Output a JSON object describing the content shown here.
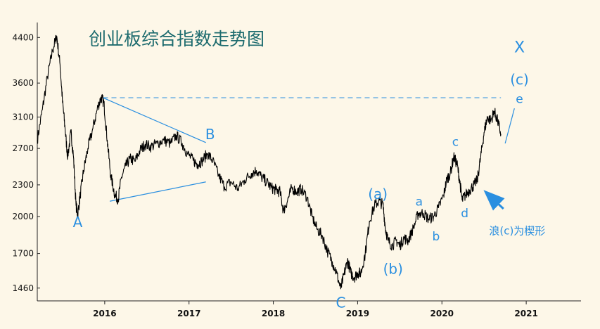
{
  "chart_data": {
    "type": "line",
    "title": "创业板综合指数走势图",
    "xlabel": "",
    "ylabel": "",
    "y_scale": "log",
    "ylim": [
      1380,
      4700
    ],
    "xlim": [
      2015.2,
      2021.65
    ],
    "y_ticks": [
      {
        "value": 4400,
        "label": "4400"
      },
      {
        "value": 3600,
        "label": "3600"
      },
      {
        "value": 3100,
        "label": "3100"
      },
      {
        "value": 2700,
        "label": "2700"
      },
      {
        "value": 2300,
        "label": "2300"
      },
      {
        "value": 2000,
        "label": "2000"
      },
      {
        "value": 1700,
        "label": "1700"
      },
      {
        "value": 1460,
        "label": "1460"
      }
    ],
    "x_ticks": [
      {
        "value": 2016,
        "label": "2016"
      },
      {
        "value": 2017,
        "label": "2017"
      },
      {
        "value": 2018,
        "label": "2018"
      },
      {
        "value": 2019,
        "label": "2019"
      },
      {
        "value": 2020,
        "label": "2020"
      },
      {
        "value": 2021,
        "label": "2021"
      }
    ],
    "series": [
      {
        "color": "#000000",
        "points": [
          [
            2015.2,
            2800
          ],
          [
            2015.26,
            3200
          ],
          [
            2015.32,
            3700
          ],
          [
            2015.38,
            4150
          ],
          [
            2015.43,
            4430
          ],
          [
            2015.47,
            3900
          ],
          [
            2015.5,
            3300
          ],
          [
            2015.53,
            2950
          ],
          [
            2015.56,
            2600
          ],
          [
            2015.6,
            2900
          ],
          [
            2015.63,
            2600
          ],
          [
            2015.66,
            2100
          ],
          [
            2015.68,
            2020
          ],
          [
            2015.71,
            2200
          ],
          [
            2015.75,
            2450
          ],
          [
            2015.8,
            2700
          ],
          [
            2015.86,
            2950
          ],
          [
            2015.92,
            3250
          ],
          [
            2015.96,
            3380
          ],
          [
            2015.99,
            3300
          ],
          [
            2016.03,
            2800
          ],
          [
            2016.07,
            2400
          ],
          [
            2016.12,
            2200
          ],
          [
            2016.16,
            2160
          ],
          [
            2016.2,
            2380
          ],
          [
            2016.25,
            2500
          ],
          [
            2016.3,
            2580
          ],
          [
            2016.36,
            2550
          ],
          [
            2016.42,
            2680
          ],
          [
            2016.48,
            2750
          ],
          [
            2016.55,
            2720
          ],
          [
            2016.62,
            2760
          ],
          [
            2016.7,
            2800
          ],
          [
            2016.78,
            2760
          ],
          [
            2016.85,
            2860
          ],
          [
            2016.92,
            2760
          ],
          [
            2016.98,
            2640
          ],
          [
            2017.05,
            2560
          ],
          [
            2017.1,
            2520
          ],
          [
            2017.15,
            2550
          ],
          [
            2017.22,
            2640
          ],
          [
            2017.28,
            2560
          ],
          [
            2017.35,
            2400
          ],
          [
            2017.42,
            2280
          ],
          [
            2017.5,
            2330
          ],
          [
            2017.58,
            2260
          ],
          [
            2017.66,
            2350
          ],
          [
            2017.74,
            2420
          ],
          [
            2017.8,
            2450
          ],
          [
            2017.86,
            2380
          ],
          [
            2017.92,
            2330
          ],
          [
            2017.98,
            2270
          ],
          [
            2018.03,
            2250
          ],
          [
            2018.08,
            2230
          ],
          [
            2018.12,
            2050
          ],
          [
            2018.17,
            2150
          ],
          [
            2018.22,
            2270
          ],
          [
            2018.28,
            2230
          ],
          [
            2018.33,
            2260
          ],
          [
            2018.4,
            2180
          ],
          [
            2018.46,
            2000
          ],
          [
            2018.52,
            1890
          ],
          [
            2018.58,
            1840
          ],
          [
            2018.64,
            1720
          ],
          [
            2018.7,
            1640
          ],
          [
            2018.75,
            1560
          ],
          [
            2018.8,
            1455
          ],
          [
            2018.84,
            1550
          ],
          [
            2018.88,
            1650
          ],
          [
            2018.92,
            1560
          ],
          [
            2018.96,
            1530
          ],
          [
            2019.0,
            1560
          ],
          [
            2019.04,
            1560
          ],
          [
            2019.09,
            1700
          ],
          [
            2019.14,
            1960
          ],
          [
            2019.2,
            2100
          ],
          [
            2019.25,
            2140
          ],
          [
            2019.3,
            2110
          ],
          [
            2019.33,
            1900
          ],
          [
            2019.36,
            1800
          ],
          [
            2019.41,
            1760
          ],
          [
            2019.46,
            1800
          ],
          [
            2019.5,
            1760
          ],
          [
            2019.55,
            1820
          ],
          [
            2019.6,
            1800
          ],
          [
            2019.66,
            1900
          ],
          [
            2019.72,
            2030
          ],
          [
            2019.78,
            2030
          ],
          [
            2019.84,
            1980
          ],
          [
            2019.9,
            2000
          ],
          [
            2019.96,
            2080
          ],
          [
            2020.02,
            2200
          ],
          [
            2020.06,
            2360
          ],
          [
            2020.1,
            2420
          ],
          [
            2020.14,
            2600
          ],
          [
            2020.18,
            2520
          ],
          [
            2020.21,
            2350
          ],
          [
            2020.24,
            2150
          ],
          [
            2020.28,
            2200
          ],
          [
            2020.33,
            2250
          ],
          [
            2020.38,
            2300
          ],
          [
            2020.42,
            2350
          ],
          [
            2020.46,
            2600
          ],
          [
            2020.5,
            2900
          ],
          [
            2020.54,
            3100
          ],
          [
            2020.58,
            3050
          ],
          [
            2020.62,
            3180
          ],
          [
            2020.66,
            3050
          ],
          [
            2020.7,
            2880
          ]
        ]
      }
    ],
    "annotations": [
      {
        "text": "A",
        "x": 2015.68,
        "y": 1910,
        "size": 20
      },
      {
        "text": "B",
        "x": 2017.25,
        "y": 2810,
        "size": 20
      },
      {
        "text": "C",
        "x": 2018.8,
        "y": 1340,
        "size": 20
      },
      {
        "text": "(a)",
        "x": 2019.24,
        "y": 2160,
        "size": 20
      },
      {
        "text": "(b)",
        "x": 2019.42,
        "y": 1555,
        "size": 20
      },
      {
        "text": "a",
        "x": 2019.73,
        "y": 2100,
        "size": 17
      },
      {
        "text": "b",
        "x": 2019.93,
        "y": 1800,
        "size": 17
      },
      {
        "text": "c",
        "x": 2020.16,
        "y": 2730,
        "size": 17
      },
      {
        "text": "d",
        "x": 2020.27,
        "y": 1995,
        "size": 17
      },
      {
        "text": "e",
        "x": 2020.92,
        "y": 3300,
        "size": 17
      },
      {
        "text": "X",
        "x": 2020.92,
        "y": 4120,
        "size": 22
      },
      {
        "text": "(c)",
        "x": 2020.92,
        "y": 3580,
        "size": 20
      }
    ],
    "lines": [
      {
        "style": "dashed",
        "points": [
          [
            2015.98,
            3375
          ],
          [
            2020.7,
            3375
          ]
        ]
      },
      {
        "style": "solid",
        "points": [
          [
            2015.98,
            3375
          ],
          [
            2017.2,
            2770
          ]
        ]
      },
      {
        "style": "solid",
        "points": [
          [
            2016.06,
            2140
          ],
          [
            2017.2,
            2330
          ]
        ]
      },
      {
        "style": "solid",
        "points": [
          [
            2020.75,
            2760
          ],
          [
            2020.86,
            3220
          ]
        ]
      },
      {
        "style": "arrow",
        "points": [
          [
            2020.73,
            2070
          ],
          [
            2020.53,
            2220
          ]
        ]
      }
    ],
    "note": {
      "text": "浪(c)为楔形",
      "x": 2020.56,
      "y": 1850
    }
  }
}
